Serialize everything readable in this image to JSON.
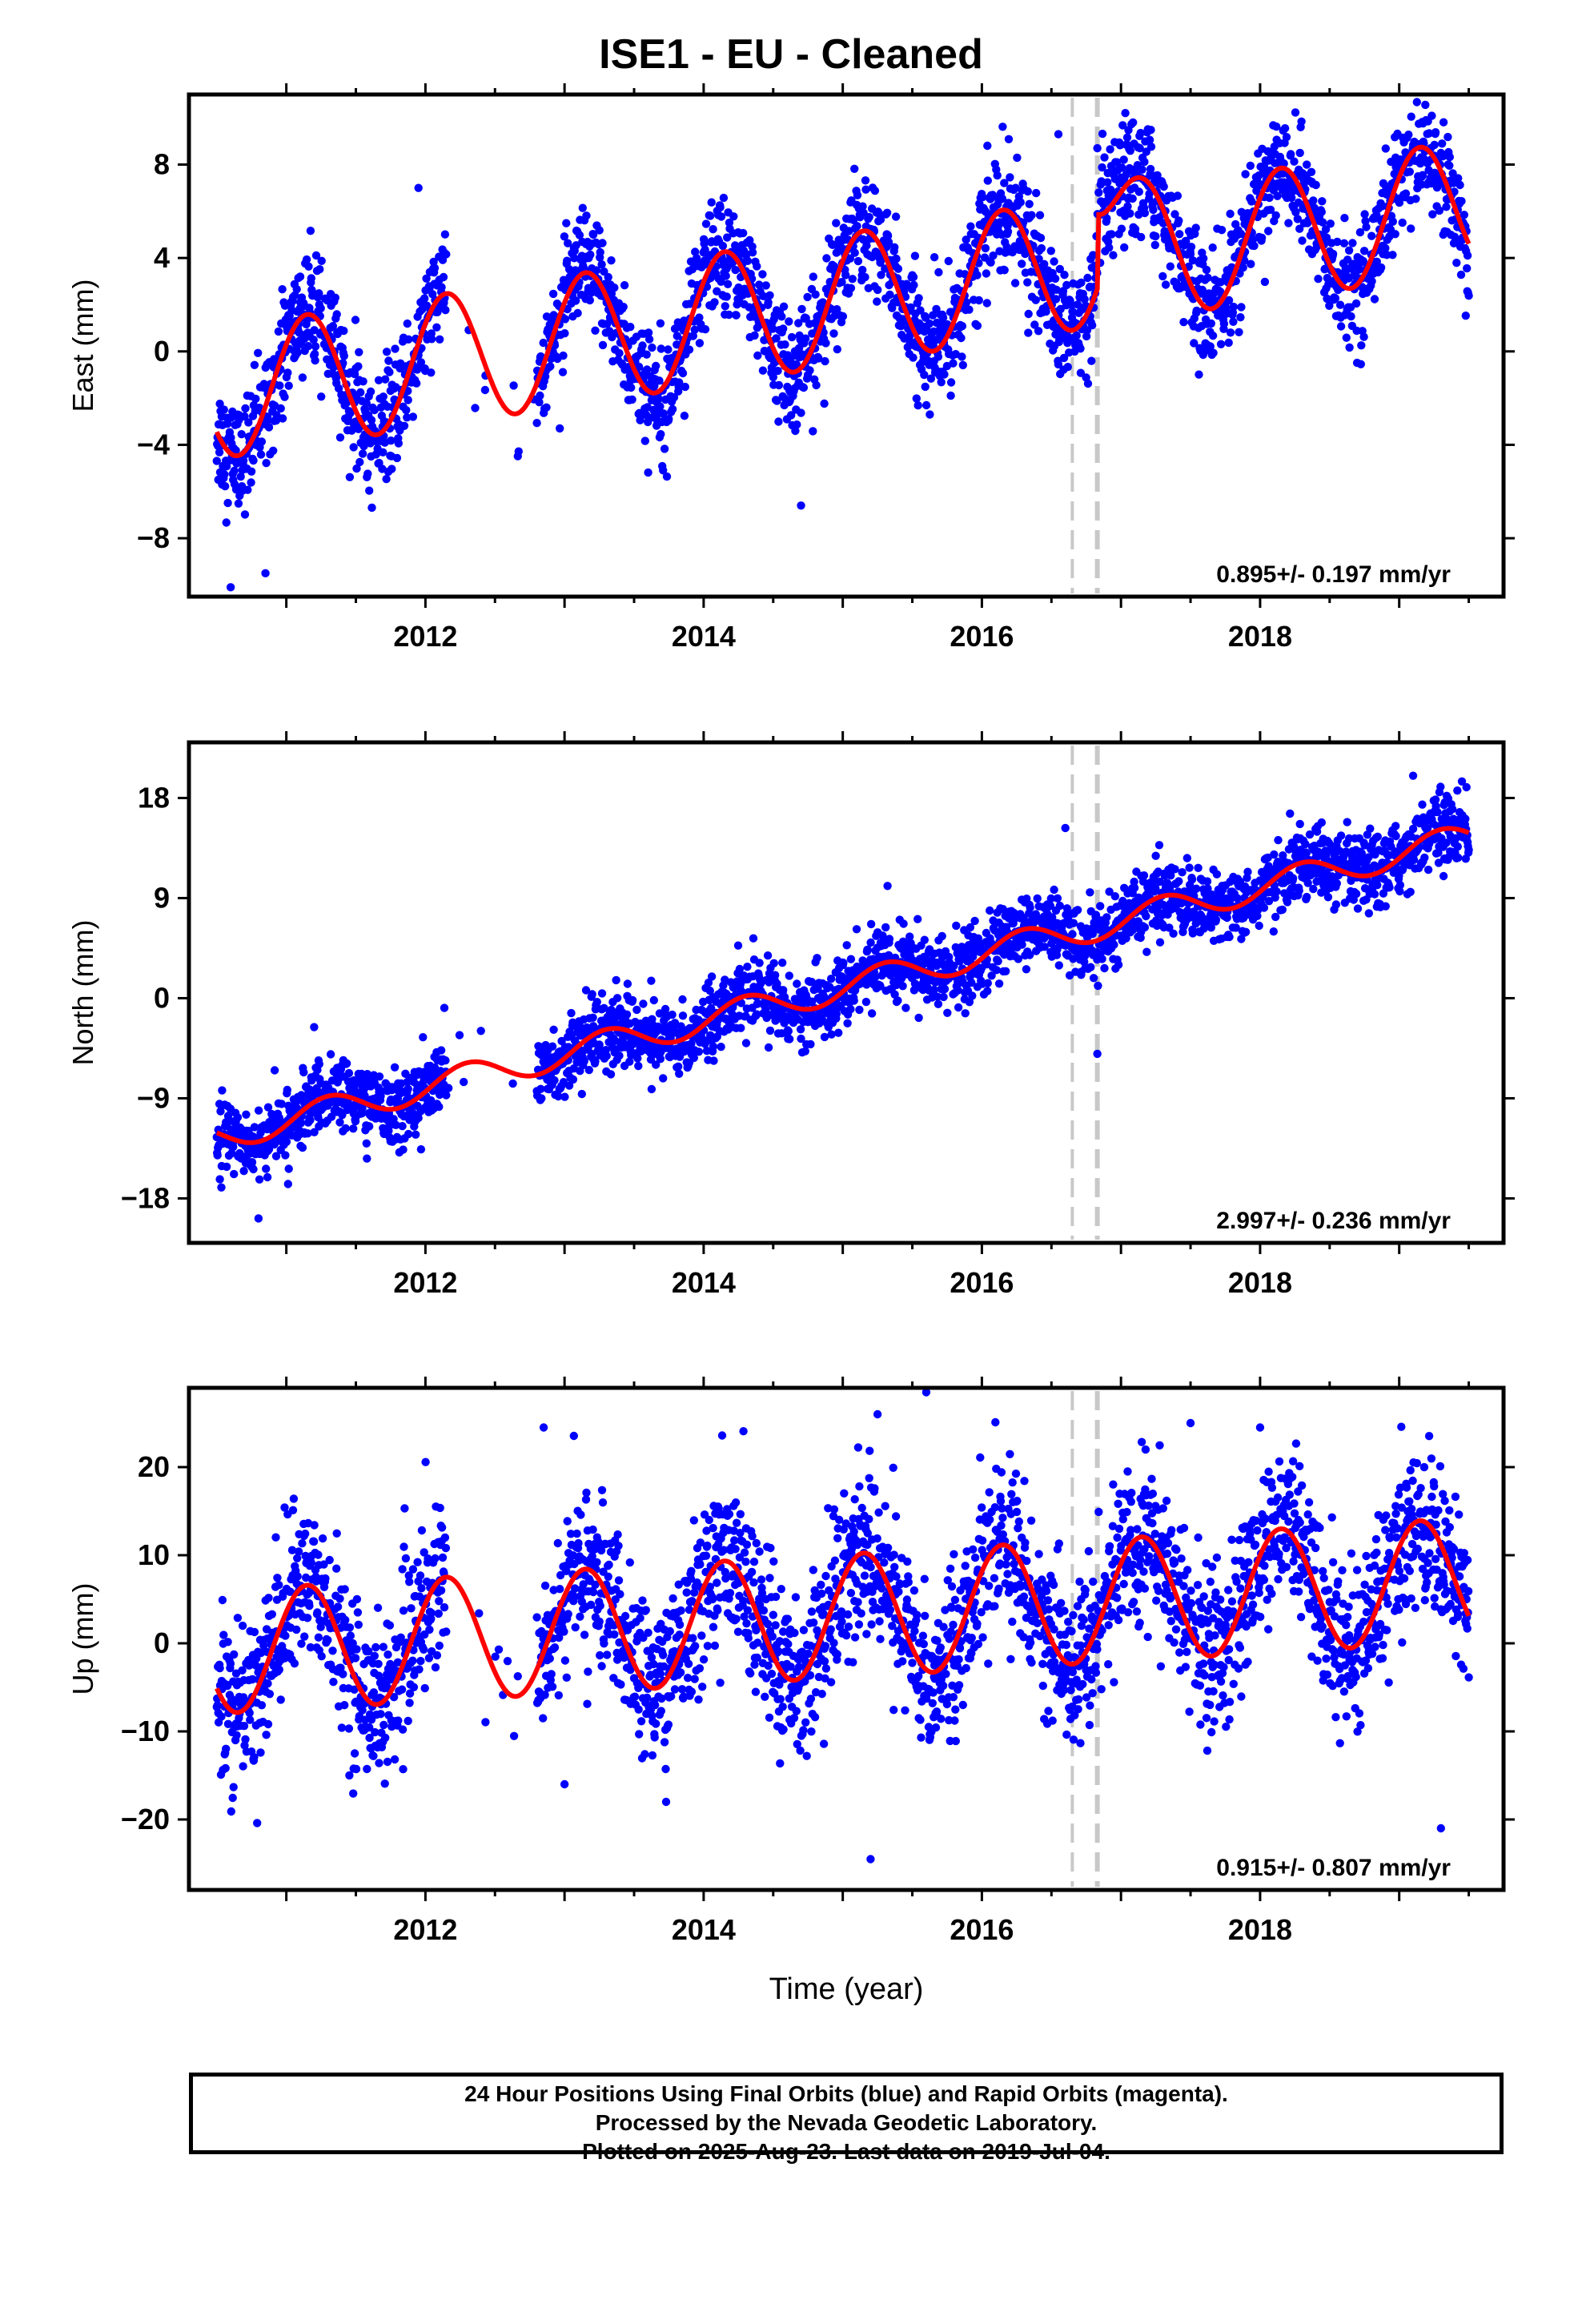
{
  "title": "ISE1  - EU - Cleaned",
  "footer": {
    "line1": "24 Hour Positions Using Final Orbits (blue) and Rapid Orbits (magenta).",
    "line2": "Processed by the Nevada Geodetic Laboratory.",
    "line3": "Plotted on 2025-Aug-23. Last data on 2019-Jul-04."
  },
  "colors": {
    "points": "#0000ff",
    "model": "#ff0000",
    "steps": "#c8c8c8",
    "frame": "#000000"
  },
  "chart_data": [
    {
      "type": "scatter",
      "name": "east",
      "ylabel": "East (mm)",
      "xlabel": "",
      "xlim": [
        2010.3,
        2019.75
      ],
      "ylim": [
        -10.5,
        11
      ],
      "xticks": [
        2012,
        2014,
        2016,
        2018
      ],
      "yticks": [
        -8,
        -4,
        0,
        4,
        8
      ],
      "rate_label": "0.895+/- 0.197 mm/yr",
      "steps": [
        2016.65,
        2016.83
      ],
      "model": {
        "rate": 0.895,
        "anchor_x": 2010.5,
        "anchor_y": -1.8,
        "amp": 2.8,
        "phase": 0.4,
        "offset_at": 2016.83,
        "offset": 3.2
      },
      "gaps": [
        [
          2012.15,
          2012.8
        ]
      ],
      "noise": 1.2,
      "outliers": [
        [
          2011.95,
          7.0
        ],
        [
          2011.1,
          3.2
        ],
        [
          2010.6,
          -10.1
        ],
        [
          2010.85,
          -9.5
        ],
        [
          2014.7,
          -6.6
        ],
        [
          2016.55,
          9.3
        ],
        [
          2016.83,
          8.7
        ]
      ],
      "grid": false
    },
    {
      "type": "scatter",
      "name": "north",
      "ylabel": "North (mm)",
      "xlabel": "",
      "xlim": [
        2010.3,
        2019.75
      ],
      "ylim": [
        -22,
        23
      ],
      "xticks": [
        2012,
        2014,
        2016,
        2018
      ],
      "yticks": [
        -18,
        -9,
        0,
        9,
        18
      ],
      "rate_label": "2.997+/- 0.236 mm/yr",
      "steps": [
        2016.65,
        2016.83
      ],
      "model": {
        "rate": 2.997,
        "anchor_x": 2010.5,
        "anchor_y": -12.5,
        "amp": 1.3,
        "phase": 0.55,
        "offset_at": 2016.83,
        "offset": 0
      },
      "gaps": [
        [
          2012.15,
          2012.8
        ]
      ],
      "noise": 1.6,
      "outliers": [
        [
          2016.6,
          15.3
        ],
        [
          2016.83,
          -5.0
        ],
        [
          2010.8,
          -19.8
        ],
        [
          2011.2,
          -2.6
        ],
        [
          2017.25,
          12.8
        ],
        [
          2019.1,
          20.0
        ]
      ],
      "grid": false
    },
    {
      "type": "scatter",
      "name": "up",
      "ylabel": "Up (mm)",
      "xlabel": "Time (year)",
      "xlim": [
        2010.3,
        2019.75
      ],
      "ylim": [
        -28,
        29
      ],
      "xticks": [
        2012,
        2014,
        2016,
        2018
      ],
      "yticks": [
        -20,
        -10,
        0,
        10,
        20
      ],
      "rate_label": "0.915+/- 0.807 mm/yr",
      "steps": [
        2016.65,
        2016.83
      ],
      "model": {
        "rate": 0.915,
        "anchor_x": 2010.5,
        "anchor_y": -1.0,
        "amp": 7.0,
        "phase": 0.4,
        "offset_at": 2016.83,
        "offset": 0
      },
      "gaps": [
        [
          2012.15,
          2012.8
        ]
      ],
      "noise": 4.5,
      "outliers": [
        [
          2012.85,
          24.5
        ],
        [
          2015.25,
          26.0
        ],
        [
          2015.6,
          28.5
        ],
        [
          2017.5,
          25.0
        ],
        [
          2018.0,
          24.5
        ],
        [
          2015.2,
          -24.5
        ],
        [
          2013.0,
          -16.0
        ],
        [
          2019.3,
          -21.0
        ]
      ],
      "grid": false
    }
  ]
}
